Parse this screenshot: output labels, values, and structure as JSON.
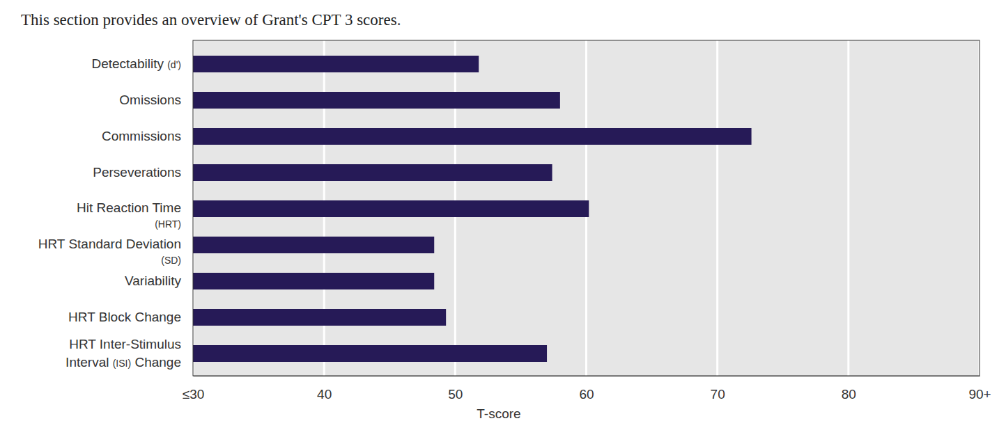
{
  "chart_data": {
    "type": "bar",
    "orientation": "horizontal",
    "title": "This section provides an overview of Grant's CPT 3 scores.",
    "xlabel": "T-score",
    "categories": [
      "Detectability (d')",
      "Omissions",
      "Commissions",
      "Perseverations",
      "Hit Reaction Time\n(HRT)",
      "HRT Standard Deviation\n(SD)",
      "Variability",
      "HRT Block Change",
      "HRT Inter-Stimulus\nInterval (ISI) Change"
    ],
    "values": [
      51.8,
      58.0,
      72.6,
      57.4,
      60.2,
      48.4,
      48.4,
      49.3,
      57.0
    ],
    "color": "#261a57",
    "xlim": [
      30,
      90
    ],
    "xticks": [
      {
        "value": 30,
        "label": "≤30"
      },
      40,
      50,
      60,
      70,
      80,
      {
        "value": 90,
        "label": "90+"
      }
    ],
    "grid": true
  }
}
